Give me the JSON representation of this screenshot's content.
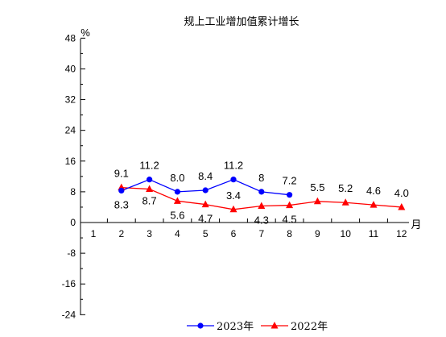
{
  "chart_data": {
    "type": "line",
    "title": "规上工业增加值累计增长",
    "ylabel": "%",
    "xlabel": "月",
    "ylim": [
      -24,
      48
    ],
    "yticks": [
      48,
      40,
      32,
      24,
      16,
      8,
      0,
      -8,
      -16,
      -24
    ],
    "categories": [
      "1",
      "2",
      "3",
      "4",
      "5",
      "6",
      "7",
      "8",
      "9",
      "10",
      "11",
      "12"
    ],
    "grid": false,
    "legend_position": "bottom",
    "series": [
      {
        "name": "2023年",
        "color": "#0000ff",
        "marker": "circle",
        "x": [
          "2",
          "3",
          "4",
          "5",
          "6",
          "7",
          "8"
        ],
        "values": [
          8.3,
          11.2,
          8.0,
          8.4,
          11.2,
          8,
          7.2
        ],
        "labels": [
          "8.3",
          "11.2",
          "8.0",
          "8.4",
          "11.2",
          "8",
          "7.2"
        ]
      },
      {
        "name": "2022年",
        "color": "#ff0000",
        "marker": "triangle",
        "x": [
          "2",
          "3",
          "4",
          "5",
          "6",
          "7",
          "8",
          "9",
          "10",
          "11",
          "12"
        ],
        "values": [
          9.1,
          8.7,
          5.6,
          4.7,
          3.4,
          4.3,
          4.5,
          5.5,
          5.2,
          4.6,
          4.0
        ],
        "labels": [
          "9.1",
          "8.7",
          "5.6",
          "4.7",
          "3.4",
          "4.3",
          "4.5",
          "5.5",
          "5.2",
          "4.6",
          "4.0"
        ]
      }
    ]
  }
}
